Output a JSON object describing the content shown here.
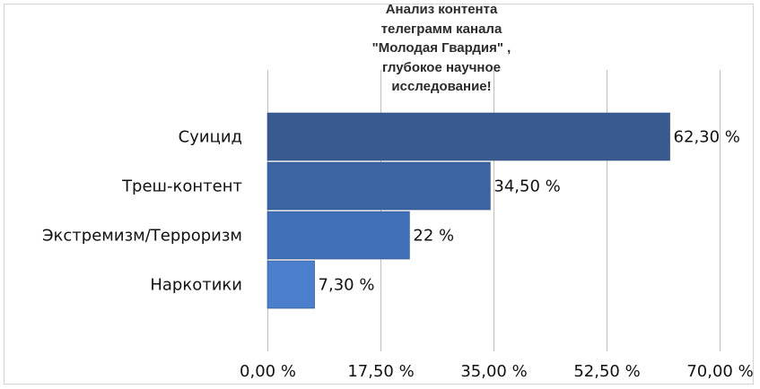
{
  "chart_data": {
    "type": "bar",
    "orientation": "horizontal",
    "title": "Анализ контента\nтелеграмм канала\n\"Молодая Гвардия\" ,\nглубокое научное\nисследование!",
    "categories": [
      "Суицид",
      "Треш-контент",
      "Экстремизм/Терроризм",
      "Наркотики"
    ],
    "values": [
      62.3,
      34.5,
      22,
      7.3
    ],
    "value_labels": [
      "62,30 %",
      "34,50 %",
      "22 %",
      "7,30 %"
    ],
    "bar_colors": [
      "#385a8f",
      "#3c64a2",
      "#416fb8",
      "#4c7fcb"
    ],
    "xlim": [
      0,
      70
    ],
    "x_ticks": [
      0,
      17.5,
      35,
      52.5,
      70
    ],
    "x_tick_labels": [
      "0,00 %",
      "17,50 %",
      "35,00 %",
      "52,50 %",
      "70,00 %"
    ],
    "xlabel": "",
    "ylabel": "",
    "grid": true,
    "legend": "none"
  }
}
